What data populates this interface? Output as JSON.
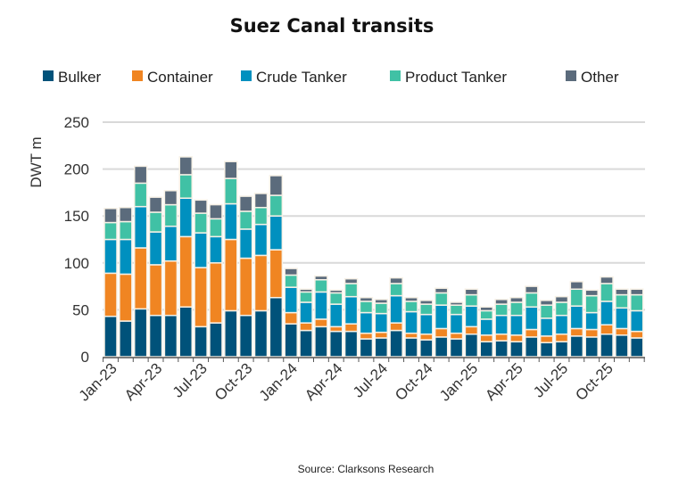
{
  "chart_data": {
    "type": "bar",
    "stacked": true,
    "title": "Suez Canal transits",
    "ylabel": "DWT m",
    "xlabel": "",
    "ylim": [
      0,
      250
    ],
    "yticks": [
      "0",
      "50",
      "100",
      "150",
      "200",
      "250"
    ],
    "grid": true,
    "legend_position": "top",
    "source": "Source: Clarksons Research",
    "categories": [
      "Jan-23",
      "Feb-23",
      "Mar-23",
      "Apr-23",
      "May-23",
      "Jun-23",
      "Jul-23",
      "Aug-23",
      "Sep-23",
      "Oct-23",
      "Nov-23",
      "Dec-23",
      "Jan-24",
      "Feb-24",
      "Mar-24",
      "Apr-24",
      "May-24",
      "Jun-24",
      "Jul-24",
      "Aug-24",
      "Sep-24",
      "Oct-24",
      "Nov-24",
      "Dec-24",
      "Jan-25",
      "Feb-25",
      "Mar-25",
      "Apr-25",
      "May-25",
      "Jun-25",
      "Jul-25",
      "Aug-25",
      "Sep-25",
      "Oct-25",
      "Nov-25",
      "Dec-25"
    ],
    "xtick_labels": [
      "Jan-23",
      "Apr-23",
      "Jul-23",
      "Oct-23",
      "Jan-24",
      "Apr-24",
      "Jul-24",
      "Oct-24",
      "Jan-25",
      "Apr-25",
      "Jul-25",
      "Oct-25"
    ],
    "series": [
      {
        "name": "Bulker",
        "color": "#00527a",
        "values": [
          43,
          38,
          51,
          44,
          44,
          53,
          32,
          36,
          49,
          44,
          49,
          63,
          35,
          28,
          32,
          27,
          27,
          19,
          20,
          28,
          20,
          18,
          21,
          19,
          24,
          16,
          17,
          16,
          21,
          15,
          16,
          22,
          21,
          24,
          23,
          20
        ]
      },
      {
        "name": "Container",
        "color": "#f08522",
        "values": [
          46,
          50,
          65,
          54,
          58,
          75,
          63,
          64,
          76,
          61,
          59,
          51,
          12,
          8,
          8,
          5,
          8,
          6,
          6,
          8,
          5,
          6,
          9,
          6,
          8,
          7,
          7,
          7,
          8,
          7,
          8,
          8,
          8,
          10,
          7,
          7
        ]
      },
      {
        "name": "Crude Tanker",
        "color": "#0090bf",
        "values": [
          36,
          37,
          44,
          35,
          37,
          41,
          37,
          28,
          38,
          31,
          33,
          36,
          27,
          22,
          29,
          24,
          29,
          22,
          20,
          29,
          23,
          21,
          25,
          20,
          22,
          17,
          20,
          21,
          24,
          19,
          20,
          24,
          18,
          25,
          22,
          22
        ]
      },
      {
        "name": "Product Tanker",
        "color": "#40c1a5",
        "values": [
          18,
          19,
          25,
          21,
          23,
          25,
          21,
          19,
          27,
          19,
          18,
          22,
          13,
          11,
          13,
          12,
          14,
          12,
          11,
          13,
          11,
          11,
          13,
          10,
          12,
          9,
          12,
          14,
          15,
          14,
          14,
          18,
          18,
          19,
          14,
          17
        ]
      },
      {
        "name": "Other",
        "color": "#5b6b7c",
        "values": [
          15,
          15,
          18,
          16,
          15,
          19,
          14,
          15,
          18,
          16,
          15,
          21,
          7,
          3,
          4,
          3,
          5,
          4,
          4,
          6,
          4,
          4,
          5,
          3,
          6,
          4,
          5,
          5,
          7,
          5,
          6,
          8,
          6,
          7,
          6,
          6
        ]
      }
    ]
  }
}
